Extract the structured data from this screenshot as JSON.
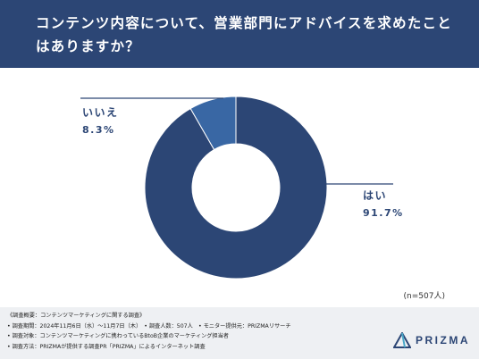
{
  "header": {
    "title": "コンテンツ内容について、営業部門にアドバイスを求めたことはありますか？"
  },
  "chart_data": {
    "type": "pie",
    "title": "コンテンツ内容について、営業部門にアドバイスを求めたことはありますか？",
    "categories": [
      "はい",
      "いいえ"
    ],
    "values": [
      91.7,
      8.3
    ],
    "value_labels": [
      "91.7%",
      "8.3%"
    ],
    "colors": [
      "#2c4675",
      "#3967a4"
    ],
    "donut": true
  },
  "sample_size": "(n=507人)",
  "footer": {
    "lines": [
      "《調査概要：コンテンツマーケティングに関する調査》",
      "• 調査期間：2024年11月6日（水）〜11月7日（木）　• 調査人数：507人　• モニター提供元：PRIZMAリサーチ",
      "• 調査対象：コンテンツマーケティングに携わっているBtoB企業のマーケティング担当者",
      "• 調査方法：PRIZMAが提供する調査PR「PRIZMA」によるインターネット調査"
    ]
  },
  "logo": {
    "text": "PRIZMA",
    "icon": "prizma-logo-icon"
  }
}
